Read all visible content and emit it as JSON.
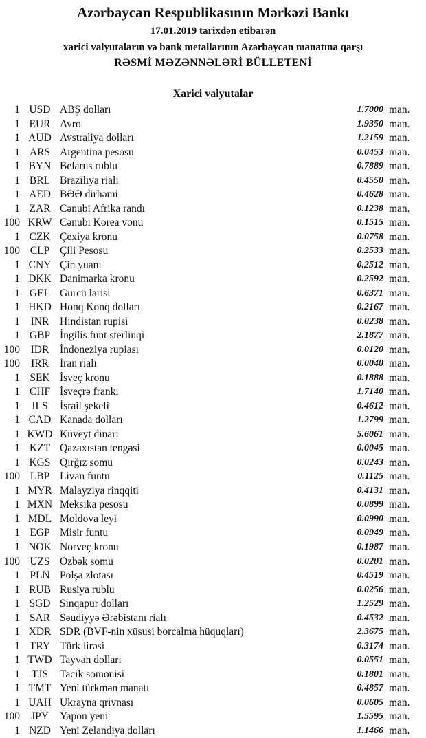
{
  "header": {
    "title": "Azərbaycan Respublikasının Mərkəzi Bankı",
    "date_line": "17.01.2019  tarixdən etibarən",
    "subtitle": "xarici valyutaların və bank metallarının Azərbaycan manatına qarşı",
    "bulletin": "RƏSMİ MƏZƏNNƏLƏRİ BÜLLETENİ"
  },
  "section_title": "Xarici valyutalar",
  "unit": "man.",
  "rates": [
    {
      "n": "1",
      "code": "USD",
      "name": "ABŞ dolları",
      "value": "1.7000"
    },
    {
      "n": "1",
      "code": "EUR",
      "name": "Avro",
      "value": "1.9350"
    },
    {
      "n": "1",
      "code": "AUD",
      "name": "Avstraliya dolları",
      "value": "1.2159"
    },
    {
      "n": "1",
      "code": "ARS",
      "name": "Argentina pesosu",
      "value": "0.0453"
    },
    {
      "n": "1",
      "code": "BYN",
      "name": "Belarus rublu",
      "value": "0.7889"
    },
    {
      "n": "1",
      "code": "BRL",
      "name": "Braziliya rialı",
      "value": "0.4550"
    },
    {
      "n": "1",
      "code": "AED",
      "name": "BƏƏ dirhəmi",
      "value": "0.4628"
    },
    {
      "n": "1",
      "code": "ZAR",
      "name": "Cənubi Afrika randı",
      "value": "0.1238"
    },
    {
      "n": "100",
      "code": "KRW",
      "name": "Cənubi Korea vonu",
      "value": "0.1515"
    },
    {
      "n": "1",
      "code": "CZK",
      "name": "Çexiya kronu",
      "value": "0.0758"
    },
    {
      "n": "100",
      "code": "CLP",
      "name": "Çili Pesosu",
      "value": "0.2533"
    },
    {
      "n": "1",
      "code": "CNY",
      "name": "Çin yuanı",
      "value": "0.2512"
    },
    {
      "n": "1",
      "code": "DKK",
      "name": "Danimarka kronu",
      "value": "0.2592"
    },
    {
      "n": "1",
      "code": "GEL",
      "name": "Gürcü larisi",
      "value": "0.6371"
    },
    {
      "n": "1",
      "code": "HKD",
      "name": "Honq Konq dolları",
      "value": "0.2167"
    },
    {
      "n": "1",
      "code": "INR",
      "name": "Hindistan rupisi",
      "value": "0.0238"
    },
    {
      "n": "1",
      "code": "GBP",
      "name": "İngilis funt sterlinqi",
      "value": "2.1877"
    },
    {
      "n": "100",
      "code": "IDR",
      "name": "İndoneziya rupiası",
      "value": "0.0120"
    },
    {
      "n": "100",
      "code": "IRR",
      "name": "İran rialı",
      "value": "0.0040"
    },
    {
      "n": "1",
      "code": "SEK",
      "name": "İsveç kronu",
      "value": "0.1888"
    },
    {
      "n": "1",
      "code": "CHF",
      "name": "İsveçrə frankı",
      "value": "1.7140"
    },
    {
      "n": "1",
      "code": "ILS",
      "name": "İsrail şekeli",
      "value": "0.4612"
    },
    {
      "n": "1",
      "code": "CAD",
      "name": "Kanada dolları",
      "value": "1.2799"
    },
    {
      "n": "1",
      "code": "KWD",
      "name": "Küveyt dinarı",
      "value": "5.6061"
    },
    {
      "n": "1",
      "code": "KZT",
      "name": "Qazaxıstan tengəsi",
      "value": "0.0045"
    },
    {
      "n": "1",
      "code": "KGS",
      "name": "Qırğız somu",
      "value": "0.0243"
    },
    {
      "n": "100",
      "code": "LBP",
      "name": "Livan funtu",
      "value": "0.1125"
    },
    {
      "n": "1",
      "code": "MYR",
      "name": "Malayziya rinqqiti",
      "value": "0.4131"
    },
    {
      "n": "1",
      "code": "MXN",
      "name": "Meksika pesosu",
      "value": "0.0899"
    },
    {
      "n": "1",
      "code": "MDL",
      "name": "Moldova leyi",
      "value": "0.0990"
    },
    {
      "n": "1",
      "code": "EGP",
      "name": "Misir funtu",
      "value": "0.0949"
    },
    {
      "n": "1",
      "code": "NOK",
      "name": "Norveç kronu",
      "value": "0.1987"
    },
    {
      "n": "100",
      "code": "UZS",
      "name": "Özbək somu",
      "value": "0.0201"
    },
    {
      "n": "1",
      "code": "PLN",
      "name": "Polşa zlotası",
      "value": "0.4519"
    },
    {
      "n": "1",
      "code": "RUB",
      "name": "Rusiya rublu",
      "value": "0.0256"
    },
    {
      "n": "1",
      "code": "SGD",
      "name": "Sinqapur dolları",
      "value": "1.2529"
    },
    {
      "n": "1",
      "code": "SAR",
      "name": "Səudiyyə Ərəbistanı rialı",
      "value": "0.4532"
    },
    {
      "n": "1",
      "code": "XDR",
      "name": "SDR (BVF-nin xüsusi borcalma hüquqları)",
      "value": "2.3675"
    },
    {
      "n": "1",
      "code": "TRY",
      "name": "Türk lirəsi",
      "value": "0.3174"
    },
    {
      "n": "1",
      "code": "TWD",
      "name": "Tayvan dolları",
      "value": "0.0551"
    },
    {
      "n": "1",
      "code": "TJS",
      "name": "Tacik somonisi",
      "value": "0.1801"
    },
    {
      "n": "1",
      "code": "TMT",
      "name": "Yeni türkmən manatı",
      "value": "0.4857"
    },
    {
      "n": "1",
      "code": "UAH",
      "name": "Ukrayna qrivnası",
      "value": "0.0605"
    },
    {
      "n": "100",
      "code": "JPY",
      "name": "Yapon yeni",
      "value": "1.5595"
    },
    {
      "n": "1",
      "code": "NZD",
      "name": "Yeni Zelandiya dolları",
      "value": "1.1466"
    }
  ]
}
